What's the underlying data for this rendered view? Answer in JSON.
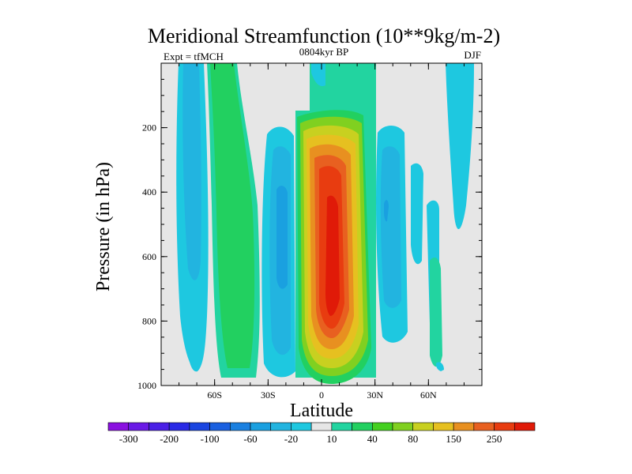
{
  "chart_data": {
    "type": "contour",
    "title": "Meridional Streamfunction (10**9kg/m-2)",
    "left_string": "Expt = tfMCH",
    "center_string": "0804kyr BP",
    "right_string": "DJF",
    "xlabel": "Latitude",
    "ylabel": "Pressure (in hPa)",
    "xlim": [
      -90,
      90
    ],
    "ylim": [
      1000,
      0
    ],
    "x_ticks": [
      {
        "value": -60,
        "label": "60S"
      },
      {
        "value": -30,
        "label": "30S"
      },
      {
        "value": 0,
        "label": "0"
      },
      {
        "value": 30,
        "label": "30N"
      },
      {
        "value": 60,
        "label": "60N"
      }
    ],
    "y_ticks": [
      {
        "value": 200,
        "label": "200"
      },
      {
        "value": 400,
        "label": "400"
      },
      {
        "value": 600,
        "label": "600"
      },
      {
        "value": 800,
        "label": "800"
      },
      {
        "value": 1000,
        "label": "1000"
      }
    ],
    "colorbar": {
      "levels": [
        -300,
        -250,
        -200,
        -150,
        -100,
        -80,
        -60,
        -40,
        -20,
        -10,
        10,
        20,
        40,
        60,
        80,
        100,
        150,
        200,
        250,
        300
      ],
      "labels": [
        "-300",
        "-200",
        "-100",
        "-60",
        "-20",
        "10",
        "40",
        "80",
        "150",
        "250"
      ],
      "colors": [
        "#8a10e0",
        "#6a1ae6",
        "#4a20e6",
        "#2a2ae6",
        "#1a45e0",
        "#1a60e0",
        "#1a80e0",
        "#1aa0e0",
        "#22b4e0",
        "#1ec8e0",
        "#e6e6e6",
        "#22d4a0",
        "#22d060",
        "#44d020",
        "#80d020",
        "#c8d020",
        "#e6c020",
        "#e89020",
        "#e86020",
        "#e83c10",
        "#e01a08"
      ]
    },
    "features": [
      {
        "name": "southern polar cell",
        "lat_range": [
          -78,
          -68
        ],
        "level": -20
      },
      {
        "name": "southern ferrel cell",
        "lat_range": [
          -63,
          -48
        ],
        "level": 20
      },
      {
        "name": "southern hadley cell",
        "lat_range": [
          -32,
          -18
        ],
        "level": -20
      },
      {
        "name": "winter hadley cell",
        "lat_range": [
          -15,
          22
        ],
        "max_level": 300
      },
      {
        "name": "northern ferrel cell",
        "lat_range": [
          30,
          45
        ],
        "level": -20
      },
      {
        "name": "northern polar cell",
        "lat_range": [
          72,
          86
        ],
        "level": -20
      }
    ]
  }
}
